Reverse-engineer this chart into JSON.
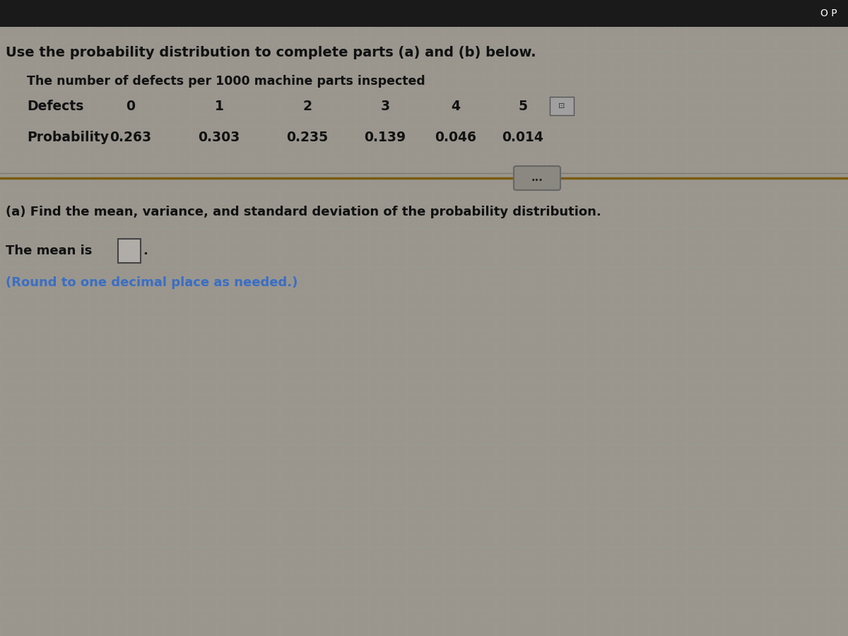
{
  "title_text": "Use the probability distribution to complete parts (a) and (b) below.",
  "table_title": "The number of defects per 1000 machine parts inspected",
  "row1_label": "Defects",
  "row2_label": "Probability",
  "defects": [
    "0",
    "1",
    "2",
    "3",
    "4",
    "5"
  ],
  "probabilities": [
    "0.263",
    "0.303",
    "0.235",
    "0.139",
    "0.046",
    "0.014"
  ],
  "part_a_text": "(a) Find the mean, variance, and standard deviation of the probability distribution.",
  "mean_label": "The mean is",
  "round_text": "(Round to one decimal place as needed.)",
  "bg_color": "#636058",
  "content_bg": "#8a8678",
  "text_color": "#1a1a1a",
  "white_text": "#f0ede8",
  "blue_color": "#3a6ec4",
  "top_bar_color": "#1a1a1a",
  "divider_color": "#7a5c10",
  "input_box_color": "#9a9690",
  "input_box_border": "#555555",
  "grid_color": "#7a7870"
}
